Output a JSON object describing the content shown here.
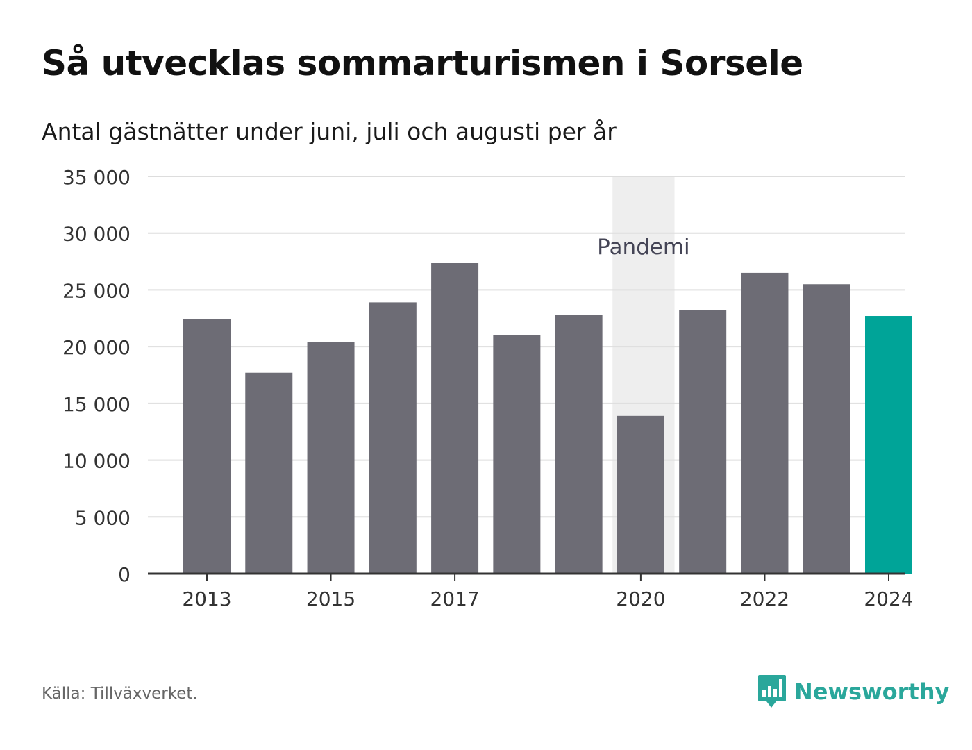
{
  "title": "Så utvecklas sommarturismen i Sorsele",
  "subtitle": "Antal gästnätter under juni, juli och augusti per år",
  "source": "Källa: Tillväxverket.",
  "brand": {
    "name": "Newsworthy",
    "icon": "bar-chart-speech-bubble-icon",
    "color": "#2aa79b"
  },
  "colors": {
    "bar": "#6d6c75",
    "highlight": "#00a498",
    "band": "#eeeeee",
    "grid": "#dddddd",
    "axis": "#333333"
  },
  "chart_data": {
    "type": "bar",
    "categories": [
      "2013",
      "2014",
      "2015",
      "2016",
      "2017",
      "2018",
      "2019",
      "2020",
      "2021",
      "2022",
      "2023",
      "2024"
    ],
    "values": [
      22400,
      17700,
      20400,
      23900,
      27400,
      21000,
      22800,
      13900,
      23200,
      26500,
      25500,
      22700
    ],
    "highlight": "2024",
    "x_tick_labels": [
      "2013",
      "2015",
      "2017",
      "2020",
      "2022",
      "2024"
    ],
    "ylim": [
      0,
      35000
    ],
    "y_ticks": [
      0,
      5000,
      10000,
      15000,
      20000,
      25000,
      30000,
      35000
    ],
    "y_tick_labels": [
      "0",
      "5 000",
      "10 000",
      "15 000",
      "20 000",
      "25 000",
      "30 000",
      "35 000"
    ],
    "xlabel": "",
    "ylabel": "",
    "grid": true,
    "legend": "none",
    "annotations": [
      {
        "type": "band",
        "label": "Pandemi",
        "x_start": "2020",
        "x_end": "2021"
      }
    ]
  }
}
